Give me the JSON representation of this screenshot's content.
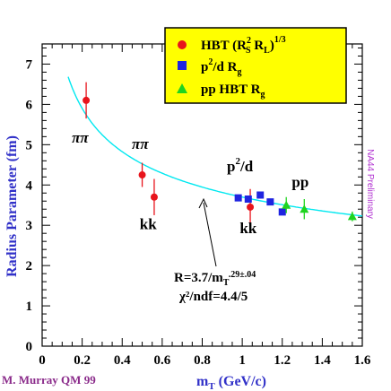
{
  "chart_data": {
    "type": "scatter",
    "xlabel_main": "m",
    "xlabel_sub": "T",
    "xlabel_unit": " (GeV/c)",
    "ylabel": "Radius Parameter (fm)",
    "xlim": [
      0,
      1.6
    ],
    "ylim": [
      0,
      7.5
    ],
    "xticks": [
      "0",
      "0.2",
      "0.4",
      "0.6",
      "0.8",
      "1",
      "1.2",
      "1.4",
      "1.6"
    ],
    "yticks": [
      "0",
      "1",
      "2",
      "3",
      "4",
      "5",
      "6",
      "7"
    ],
    "legend_position": "top-right",
    "series": [
      {
        "name_main": "HBT (R",
        "name_rest": "S",
        "color": "#e8141c",
        "marker": "circle",
        "points": [
          {
            "x": 0.22,
            "y": 6.1,
            "err": 0.45
          },
          {
            "x": 0.5,
            "y": 4.25,
            "err": 0.3
          },
          {
            "x": 0.56,
            "y": 3.7,
            "err": 0.45
          },
          {
            "x": 1.04,
            "y": 3.45,
            "err": 0.45
          }
        ]
      },
      {
        "name_main": "p",
        "name_rest": "/d  R",
        "color": "#1f24e0",
        "marker": "square",
        "points": [
          {
            "x": 0.98,
            "y": 3.68,
            "err": 0.08
          },
          {
            "x": 1.03,
            "y": 3.65,
            "err": 0.08
          },
          {
            "x": 1.09,
            "y": 3.75,
            "err": 0.08
          },
          {
            "x": 1.14,
            "y": 3.58,
            "err": 0.08
          },
          {
            "x": 1.2,
            "y": 3.33,
            "err": 0.08
          }
        ]
      },
      {
        "name_main": "pp HBT R",
        "name_rest": "g",
        "color": "#1fd41f",
        "marker": "triangle",
        "points": [
          {
            "x": 1.22,
            "y": 3.5,
            "err": 0.2
          },
          {
            "x": 1.31,
            "y": 3.4,
            "err": 0.25
          },
          {
            "x": 1.55,
            "y": 3.22,
            "err": 0.12
          }
        ]
      }
    ],
    "fit": {
      "label_line1": "R=3.7/m",
      "label_line1_sub": "T",
      "label_line1_sup": ".29±.04",
      "label_line2": "χ²/ndf=4.4/5",
      "color": "#00e8f0",
      "coefficient": 3.7,
      "exponent": 0.29,
      "x_start": 0.13,
      "x_end": 1.6
    },
    "annotations": [
      {
        "text": "ππ",
        "x": 0.19,
        "y": 5.05
      },
      {
        "text": "ππ",
        "x": 0.49,
        "y": 4.9
      },
      {
        "text": "kk",
        "x": 0.53,
        "y": 2.9
      },
      {
        "text": "kk",
        "x": 1.03,
        "y": 2.8
      },
      {
        "text": "pp",
        "x": 1.29,
        "y": 3.95
      }
    ],
    "pd_label": {
      "main": "p",
      "sup": "2",
      "rest": "/d",
      "x": 0.98,
      "y": 4.1
    },
    "legend": {
      "entry1_main": "HBT (R",
      "entry1_sup1": "2",
      "entry1_sub1": "S",
      "entry1_mid": " R",
      "entry1_sub2": "L",
      "entry1_end": ")",
      "entry1_exp": "1/3",
      "entry2_main": "p",
      "entry2_sup": "2",
      "entry2_mid": "/d  R",
      "entry2_sub": "g",
      "entry3_main": "pp HBT R",
      "entry3_sub": "g"
    },
    "credit": "M. Murray QM 99",
    "preliminary": "NA44 Preliminary"
  }
}
